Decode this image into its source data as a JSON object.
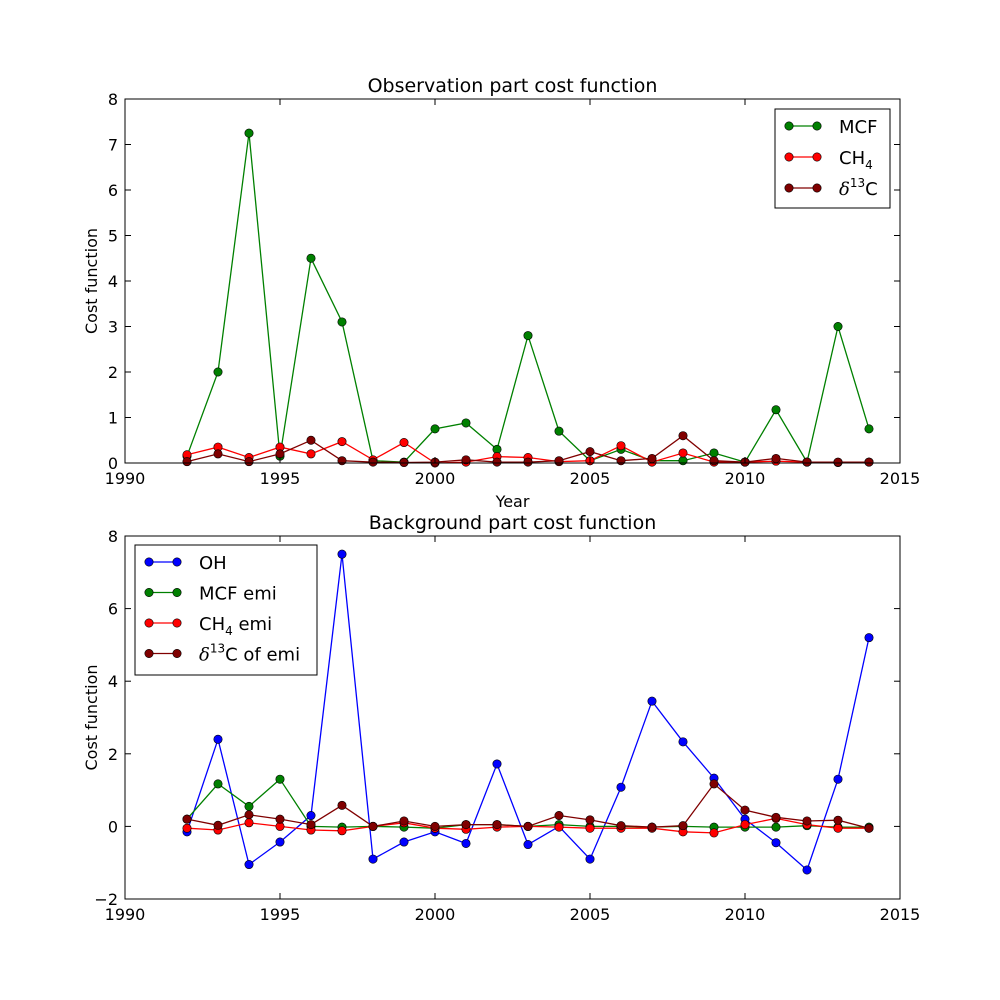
{
  "chart_data": [
    {
      "type": "line",
      "title": "Observation part cost function",
      "xlabel": "Year",
      "ylabel": "Cost function",
      "xlim": [
        1990,
        2015
      ],
      "ylim": [
        0,
        8
      ],
      "xticks": [
        "1990",
        "1995",
        "2000",
        "2005",
        "2010",
        "2015"
      ],
      "yticks": [
        "0",
        "1",
        "2",
        "3",
        "4",
        "5",
        "6",
        "7",
        "8"
      ],
      "legend_position": "top-right",
      "grid": false,
      "x": [
        1992,
        1993,
        1994,
        1995,
        1996,
        1997,
        1998,
        1999,
        2000,
        2001,
        2002,
        2003,
        2004,
        2005,
        2006,
        2007,
        2008,
        2009,
        2010,
        2011,
        2012,
        2013,
        2014
      ],
      "series": [
        {
          "name": "MCF",
          "color": "#008000",
          "values": [
            0.15,
            2.0,
            7.25,
            0.15,
            4.5,
            3.1,
            0.05,
            0.02,
            0.75,
            0.88,
            0.3,
            2.8,
            0.7,
            0.05,
            0.3,
            0.05,
            0.05,
            0.22,
            0.02,
            1.17,
            0.02,
            3.0,
            0.75
          ]
        },
        {
          "name": "CH4",
          "color": "#ff0000",
          "values": [
            0.18,
            0.35,
            0.12,
            0.35,
            0.2,
            0.47,
            0.07,
            0.45,
            0.0,
            0.02,
            0.14,
            0.12,
            0.03,
            0.05,
            0.38,
            0.02,
            0.22,
            0.02,
            0.02,
            0.04,
            0.02,
            0.01,
            0.02
          ]
        },
        {
          "name": "δ13C",
          "color": "#800000",
          "values": [
            0.03,
            0.2,
            0.03,
            0.2,
            0.5,
            0.05,
            0.02,
            0.01,
            0.02,
            0.07,
            0.02,
            0.02,
            0.05,
            0.25,
            0.05,
            0.1,
            0.6,
            0.05,
            0.02,
            0.1,
            0.02,
            0.02,
            0.02
          ]
        }
      ]
    },
    {
      "type": "line",
      "title": "Background part cost function",
      "xlabel": "",
      "ylabel": "Cost function",
      "xlim": [
        1990,
        2015
      ],
      "ylim": [
        -2,
        8
      ],
      "xticks": [
        "1990",
        "1995",
        "2000",
        "2005",
        "2010",
        "2015"
      ],
      "yticks": [
        "−2",
        "0",
        "2",
        "4",
        "6",
        "8"
      ],
      "legend_position": "top-left",
      "grid": false,
      "x": [
        1992,
        1993,
        1994,
        1995,
        1996,
        1997,
        1998,
        1999,
        2000,
        2001,
        2002,
        2003,
        2004,
        2005,
        2006,
        2007,
        2008,
        2009,
        2010,
        2011,
        2012,
        2013,
        2014
      ],
      "series": [
        {
          "name": "OH",
          "color": "#0000ff",
          "values": [
            -0.15,
            2.4,
            -1.05,
            -0.43,
            0.3,
            7.5,
            -0.9,
            -0.43,
            -0.15,
            -0.47,
            1.72,
            -0.5,
            0.0,
            -0.9,
            1.08,
            3.45,
            2.33,
            1.33,
            0.2,
            -0.45,
            -1.2,
            1.3,
            5.2
          ]
        },
        {
          "name": "MCF emi",
          "color": "#008000",
          "values": [
            0.2,
            1.17,
            0.55,
            1.3,
            0.0,
            -0.02,
            0.0,
            -0.02,
            -0.05,
            0.05,
            0.05,
            0.0,
            0.05,
            0.0,
            0.0,
            -0.02,
            0.0,
            -0.02,
            -0.02,
            -0.02,
            0.02,
            -0.02,
            -0.02
          ]
        },
        {
          "name": "CH4 emi",
          "color": "#ff0000",
          "values": [
            -0.05,
            -0.1,
            0.1,
            0.0,
            -0.1,
            -0.12,
            0.0,
            0.1,
            -0.05,
            -0.08,
            -0.02,
            0.0,
            -0.02,
            -0.05,
            -0.05,
            -0.05,
            -0.15,
            -0.18,
            0.05,
            0.22,
            0.05,
            -0.05,
            -0.05
          ]
        },
        {
          "name": "δ13C of emi",
          "color": "#800000",
          "values": [
            0.2,
            0.03,
            0.32,
            0.2,
            0.05,
            0.58,
            0.0,
            0.15,
            0.0,
            0.05,
            0.05,
            0.0,
            0.3,
            0.18,
            0.02,
            -0.02,
            0.02,
            1.17,
            0.45,
            0.25,
            0.15,
            0.17,
            -0.05
          ]
        }
      ]
    }
  ]
}
